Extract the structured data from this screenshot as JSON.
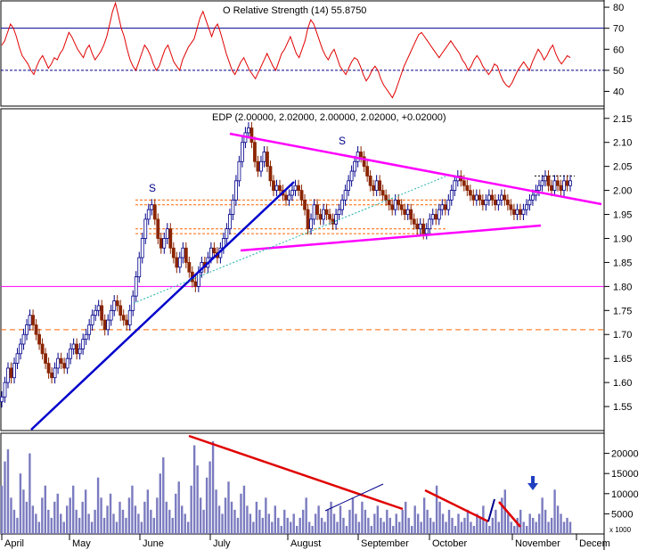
{
  "chart_data": {
    "type": "candlestick",
    "months": [
      "April",
      "May",
      "June",
      "July",
      "August",
      "September",
      "October",
      "November",
      "Decem"
    ],
    "rsi_panel": {
      "header": "O Relative Strength (14) 55.8750",
      "yticks": [
        "80",
        "70",
        "60",
        "50",
        "40"
      ],
      "ylim": [
        33,
        83
      ],
      "reference_lines": [
        70,
        50
      ],
      "values": [
        62,
        64,
        68,
        72,
        70,
        66,
        61,
        57,
        55,
        53,
        50,
        48,
        52,
        55,
        57,
        54,
        51,
        53,
        56,
        55,
        58,
        60,
        64,
        68,
        66,
        63,
        60,
        58,
        56,
        60,
        62,
        58,
        55,
        57,
        59,
        62,
        66,
        72,
        78,
        82,
        76,
        70,
        66,
        60,
        55,
        52,
        50,
        54,
        58,
        62,
        60,
        57,
        53,
        50,
        52,
        56,
        60,
        62,
        58,
        54,
        52,
        50,
        55,
        58,
        61,
        63,
        65,
        70,
        75,
        78,
        74,
        70,
        66,
        70,
        72,
        68,
        63,
        58,
        54,
        50,
        48,
        51,
        54,
        56,
        53,
        50,
        48,
        46,
        49,
        52,
        55,
        58,
        55,
        52,
        50,
        54,
        58,
        60,
        63,
        66,
        62,
        58,
        56,
        60,
        64,
        70,
        74,
        72,
        68,
        64,
        60,
        57,
        55,
        58,
        60,
        56,
        52,
        50,
        48,
        51,
        54,
        56,
        55,
        52,
        48,
        45,
        47,
        50,
        52,
        50,
        46,
        43,
        41,
        39,
        37,
        40,
        44,
        48,
        52,
        55,
        58,
        61,
        64,
        67,
        68,
        66,
        64,
        62,
        60,
        58,
        56,
        58,
        60,
        62,
        64,
        62,
        60,
        58,
        55,
        53,
        50,
        52,
        55,
        57,
        55,
        52,
        50,
        48,
        50,
        53,
        52,
        48,
        45,
        43,
        42,
        44,
        47,
        50,
        52,
        54,
        52,
        50,
        54,
        57,
        60,
        58,
        55,
        57,
        60,
        62,
        58,
        55,
        53,
        55,
        57,
        56
      ]
    },
    "price_panel": {
      "header": "EDP (2.00000, 2.02000, 2.00000, 2.02000, +0.02000)",
      "yticks": [
        "2.15",
        "2.10",
        "2.05",
        "2.00",
        "1.95",
        "1.90",
        "1.85",
        "1.80",
        "1.75",
        "1.70",
        "1.65",
        "1.60",
        "1.55"
      ],
      "ylim": [
        1.5,
        2.17
      ],
      "closes": [
        1.57,
        1.6,
        1.63,
        1.61,
        1.64,
        1.66,
        1.68,
        1.7,
        1.72,
        1.74,
        1.72,
        1.7,
        1.68,
        1.66,
        1.64,
        1.62,
        1.61,
        1.63,
        1.65,
        1.64,
        1.63,
        1.65,
        1.67,
        1.68,
        1.66,
        1.67,
        1.69,
        1.7,
        1.72,
        1.74,
        1.75,
        1.76,
        1.73,
        1.71,
        1.73,
        1.75,
        1.77,
        1.76,
        1.74,
        1.73,
        1.72,
        1.75,
        1.78,
        1.82,
        1.86,
        1.9,
        1.94,
        1.96,
        1.97,
        1.94,
        1.9,
        1.88,
        1.9,
        1.92,
        1.88,
        1.86,
        1.84,
        1.86,
        1.88,
        1.85,
        1.83,
        1.81,
        1.8,
        1.83,
        1.85,
        1.84,
        1.86,
        1.88,
        1.87,
        1.86,
        1.88,
        1.9,
        1.92,
        1.95,
        1.98,
        2.02,
        2.06,
        2.1,
        2.12,
        2.13,
        2.1,
        2.06,
        2.04,
        2.06,
        2.08,
        2.05,
        2.02,
        2.0,
        2.01,
        2.0,
        1.99,
        1.98,
        1.99,
        2.0,
        2.01,
        2.0,
        1.98,
        1.96,
        1.92,
        1.94,
        1.97,
        1.95,
        1.94,
        1.96,
        1.95,
        1.94,
        1.93,
        1.95,
        1.96,
        1.98,
        2.0,
        2.02,
        2.04,
        2.06,
        2.08,
        2.07,
        2.05,
        2.03,
        2.01,
        2.0,
        2.02,
        2.0,
        1.99,
        1.98,
        1.97,
        1.96,
        1.98,
        1.97,
        1.96,
        1.95,
        1.96,
        1.94,
        1.93,
        1.92,
        1.93,
        1.91,
        1.92,
        1.94,
        1.95,
        1.94,
        1.96,
        1.97,
        1.96,
        1.98,
        2.0,
        2.02,
        2.03,
        2.02,
        2.01,
        2.0,
        1.99,
        1.98,
        1.99,
        1.98,
        1.97,
        1.98,
        1.99,
        1.98,
        1.97,
        1.98,
        1.99,
        1.98,
        1.97,
        1.96,
        1.95,
        1.96,
        1.95,
        1.96,
        1.97,
        1.98,
        1.99,
        2.0,
        2.01,
        2.02,
        2.03,
        2.01,
        2.0,
        2.02,
        2.01,
        2.0,
        2.02,
        2.01,
        2.02
      ],
      "annotations": [
        "S",
        "S"
      ],
      "line_colors": {
        "up": "#00008b",
        "down": "#8b2500",
        "trend": "#0000cc",
        "triangle": "#ff00ff",
        "support": "#ff6600"
      }
    },
    "volume_panel": {
      "yticks": [
        "20000",
        "15000",
        "10000",
        "5000"
      ],
      "ylim": [
        0,
        25000
      ],
      "scale_label": "x 1000",
      "bar_color": "#7b7bc0",
      "volumes": [
        12000,
        18000,
        21000,
        9000,
        6000,
        4000,
        15000,
        11000,
        8000,
        20000,
        7000,
        5000,
        3000,
        9000,
        12000,
        6000,
        4000,
        8000,
        10000,
        5000,
        3000,
        7000,
        9000,
        12000,
        6000,
        4000,
        8000,
        11000,
        5000,
        3000,
        6000,
        14000,
        9000,
        4000,
        7000,
        10000,
        5000,
        3000,
        8000,
        6000,
        4000,
        9000,
        12000,
        7000,
        5000,
        3000,
        8000,
        11000,
        6000,
        4000,
        9000,
        15000,
        19000,
        8000,
        6000,
        4000,
        10000,
        13000,
        7000,
        5000,
        3000,
        12000,
        22000,
        17000,
        9000,
        6000,
        14000,
        18000,
        23000,
        11000,
        7000,
        5000,
        9000,
        13000,
        8000,
        6000,
        4000,
        10000,
        12000,
        7000,
        5000,
        3000,
        8000,
        6000,
        4000,
        9000,
        5000,
        3000,
        7000,
        4000,
        2000,
        6000,
        4000,
        3000,
        5000,
        2000,
        4000,
        6000,
        9000,
        3000,
        2000,
        5000,
        7000,
        4000,
        3000,
        6000,
        8000,
        5000,
        3000,
        7000,
        4000,
        2000,
        6000,
        9000,
        5000,
        3000,
        8000,
        6000,
        4000,
        2000,
        5000,
        7000,
        4000,
        3000,
        6000,
        4000,
        2000,
        5000,
        3000,
        6000,
        8000,
        4000,
        2000,
        7000,
        5000,
        3000,
        9000,
        6000,
        4000,
        3000,
        12000,
        8000,
        5000,
        3000,
        6000,
        4000,
        2000,
        5000,
        3000,
        4000,
        6000,
        3000,
        2000,
        5000,
        4000,
        7000,
        3000,
        2000,
        4000,
        6000,
        3000,
        9000,
        11000,
        5000,
        3000,
        2000,
        4000,
        6000,
        3000,
        2000,
        5000,
        4000,
        3000,
        5000,
        9000,
        6000,
        3000,
        4000,
        11000,
        7000,
        5000,
        3000,
        4000,
        3000
      ]
    }
  }
}
